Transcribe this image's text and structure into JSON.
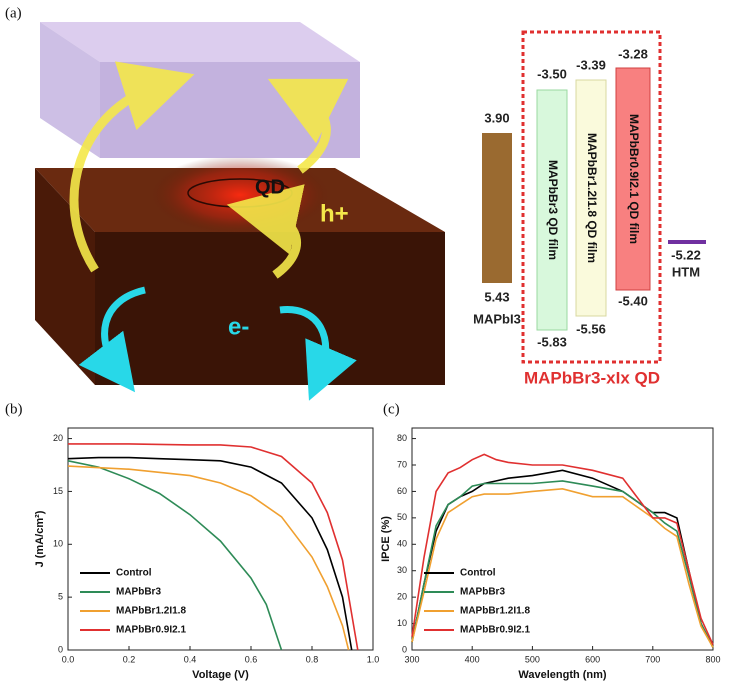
{
  "diagram": {
    "panel_label": "(a)",
    "qd_label": "QD",
    "hole_label": "h+",
    "electron_label": "e-",
    "levels": [
      {
        "top": "3.90",
        "bottom": "5.43",
        "name": "MAPbI3"
      },
      {
        "top": "-3.50",
        "bottom": "-5.83",
        "name": "MAPbBr3 QD film"
      },
      {
        "top": "-3.39",
        "bottom": "-5.56",
        "name": "MAPbBr1.2I1.8 QD film"
      },
      {
        "top": "-3.28",
        "bottom": "-5.40",
        "name": "MAPbBr0.9I2.1 QD film"
      }
    ],
    "htm": {
      "level": "-5.22",
      "name": "HTM"
    },
    "group_label": "MAPbBr3-xIx QD"
  },
  "chart_data": [
    {
      "type": "line",
      "panel_label": "(b)",
      "xlabel": "Voltage (V)",
      "ylabel": "J (mA/cm²)",
      "xlim": [
        0,
        1
      ],
      "xticks": [
        {
          "value": 0,
          "label": "0.0"
        },
        0.2,
        0.4,
        0.6,
        0.8,
        {
          "value": 1,
          "label": "1.0"
        }
      ],
      "ylim": [
        0,
        21
      ],
      "yticks": [
        0,
        5,
        10,
        15,
        20
      ],
      "legend": "lower left",
      "series": [
        {
          "name": "Control",
          "color": "#000000",
          "x": [
            0,
            0.1,
            0.2,
            0.3,
            0.4,
            0.5,
            0.6,
            0.7,
            0.8,
            0.85,
            0.9,
            0.93
          ],
          "values": [
            18.1,
            18.2,
            18.2,
            18.1,
            18.0,
            17.9,
            17.3,
            15.8,
            12.5,
            9.5,
            5,
            0
          ]
        },
        {
          "name": "MAPbBr3",
          "color": "#2e8b57",
          "x": [
            0,
            0.1,
            0.2,
            0.3,
            0.4,
            0.5,
            0.6,
            0.65,
            0.7
          ],
          "values": [
            17.9,
            17.3,
            16.2,
            14.8,
            12.8,
            10.3,
            6.8,
            4.3,
            0
          ]
        },
        {
          "name": "MAPbBr1.2I1.8",
          "color": "#f0a030",
          "x": [
            0,
            0.2,
            0.4,
            0.5,
            0.6,
            0.7,
            0.8,
            0.85,
            0.9,
            0.92
          ],
          "values": [
            17.4,
            17.1,
            16.5,
            15.8,
            14.6,
            12.6,
            8.8,
            6,
            2.3,
            0
          ]
        },
        {
          "name": "MAPbBr0.9I2.1",
          "color": "#e03030",
          "x": [
            0,
            0.2,
            0.4,
            0.5,
            0.6,
            0.7,
            0.8,
            0.85,
            0.9,
            0.95
          ],
          "values": [
            19.5,
            19.5,
            19.4,
            19.4,
            19.2,
            18.3,
            15.8,
            13,
            8.5,
            0
          ]
        }
      ]
    },
    {
      "type": "line",
      "panel_label": "(c)",
      "xlabel": "Wavelength (nm)",
      "ylabel": "IPCE (%)",
      "xlim": [
        300,
        800
      ],
      "xticks": [
        300,
        400,
        500,
        600,
        700,
        800
      ],
      "ylim": [
        0,
        84
      ],
      "yticks": [
        0,
        10,
        20,
        30,
        40,
        50,
        60,
        70,
        80
      ],
      "legend": "lower left",
      "x": [
        300,
        320,
        340,
        360,
        380,
        400,
        420,
        440,
        460,
        500,
        550,
        600,
        650,
        700,
        720,
        740,
        760,
        780,
        800
      ],
      "series": [
        {
          "name": "Control",
          "color": "#000000",
          "values": [
            3,
            25,
            45,
            55,
            58,
            60,
            63,
            64,
            65,
            66,
            68,
            65,
            60,
            52,
            52,
            50,
            30,
            10,
            1
          ]
        },
        {
          "name": "MAPbBr3",
          "color": "#2e8b57",
          "values": [
            3,
            25,
            47,
            55,
            58,
            62,
            63,
            63,
            63,
            63,
            64,
            62,
            60,
            52,
            48,
            45,
            28,
            10,
            1
          ]
        },
        {
          "name": "MAPbBr1.2I1.8",
          "color": "#f0a030",
          "values": [
            3,
            22,
            42,
            52,
            55,
            58,
            59,
            59,
            59,
            60,
            61,
            58,
            58,
            50,
            46,
            43,
            25,
            9,
            1
          ]
        },
        {
          "name": "MAPbBr0.9I2.1",
          "color": "#e03030",
          "values": [
            5,
            35,
            60,
            67,
            69,
            72,
            74,
            72,
            71,
            70,
            70,
            68,
            65,
            50,
            50,
            48,
            30,
            12,
            2
          ]
        }
      ]
    }
  ]
}
